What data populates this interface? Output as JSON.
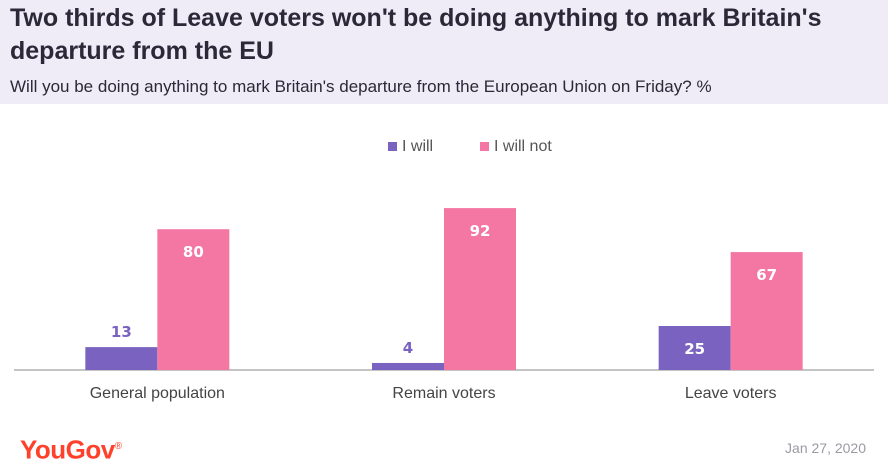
{
  "header": {
    "title": "Two thirds of Leave voters won't be doing anything to mark Britain's departure from the EU",
    "subtitle": "Will you be doing anything to mark Britain's departure from the European Union on Friday? %"
  },
  "chart_data": {
    "type": "bar",
    "title": "Two thirds of Leave voters won't be doing anything to mark Britain's departure from the EU",
    "subtitle": "Will you be doing anything to mark Britain's departure from the European Union on Friday? %",
    "categories": [
      "General population",
      "Remain voters",
      "Leave voters"
    ],
    "series": [
      {
        "name": "I will",
        "values": [
          13,
          4,
          25
        ],
        "color": "#7a62c1"
      },
      {
        "name": "I will not",
        "values": [
          80,
          92,
          67
        ],
        "color": "#f477a3"
      }
    ],
    "ylim": [
      0,
      100
    ],
    "legend_position": "top-center",
    "grid": false,
    "xlabel": "",
    "ylabel": ""
  },
  "footer": {
    "brand": "YouGov",
    "brand_mark": "®",
    "date": "Jan 27, 2020"
  }
}
